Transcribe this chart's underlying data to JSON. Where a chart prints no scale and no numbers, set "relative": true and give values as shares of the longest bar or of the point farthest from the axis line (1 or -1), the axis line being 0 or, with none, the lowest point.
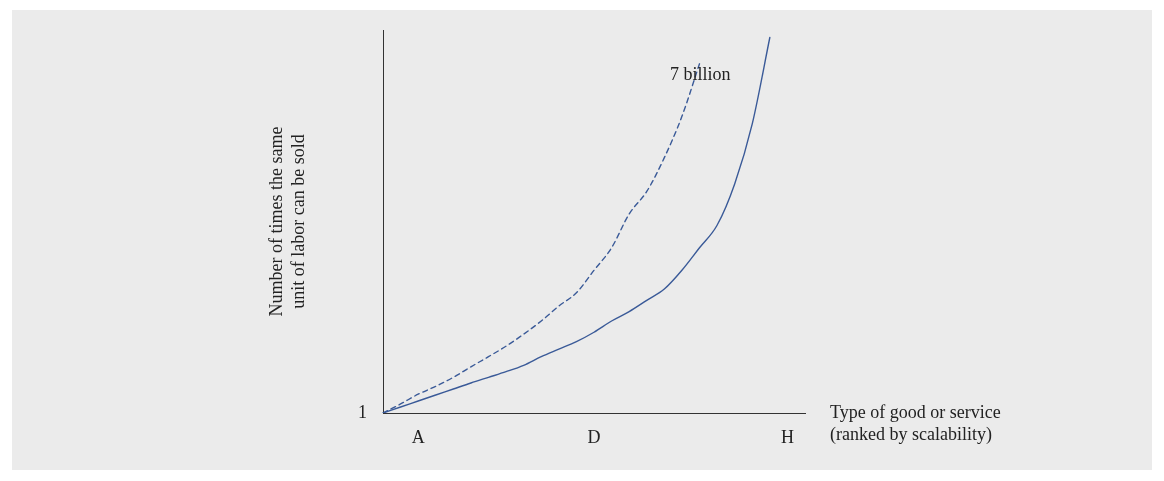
{
  "chart_data": {
    "type": "line",
    "relative": true,
    "xlabel": "Type of good or service (ranked by scalability)",
    "ylabel": "Number of times the same unit of labor can be sold",
    "categories": [
      null,
      null,
      "A",
      null,
      null,
      null,
      null,
      null,
      null,
      null,
      null,
      null,
      "D",
      null,
      null,
      null,
      null,
      null,
      null,
      null,
      null,
      null,
      null,
      "H",
      null
    ],
    "series": [
      {
        "color": "#3a5a98",
        "line_style": "dashed",
        "values": [
          0,
          0.024,
          0.05,
          0.071,
          0.095,
          0.123,
          0.15,
          0.178,
          0.21,
          0.245,
          0.285,
          0.32,
          0.38,
          0.44,
          0.53,
          0.59,
          0.68,
          0.79,
          0.93,
          null,
          null,
          null,
          null,
          null,
          null
        ]
      },
      {
        "color": "#3a5a98",
        "line_style": "solid",
        "values": [
          0,
          0.016,
          0.032,
          0.048,
          0.064,
          0.08,
          0.095,
          0.11,
          0.127,
          0.15,
          0.17,
          0.19,
          0.215,
          0.245,
          0.27,
          0.3,
          0.33,
          0.38,
          0.44,
          0.5,
          0.61,
          0.77,
          1.0,
          null,
          null
        ]
      }
    ],
    "annotations": [
      "1",
      "7 billion"
    ],
    "legend": false,
    "grid": false,
    "marker": "none"
  }
}
